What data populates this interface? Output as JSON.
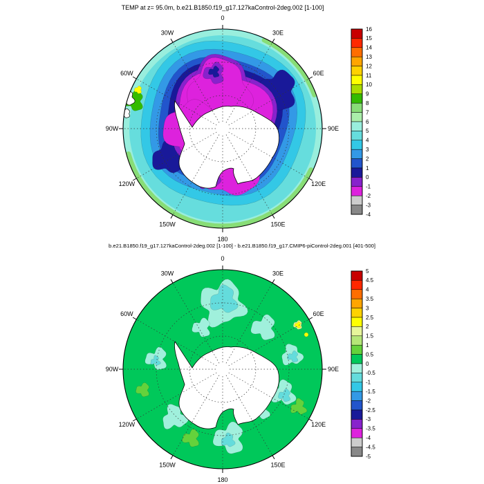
{
  "figure": {
    "background_color": "#ffffff",
    "top_chart": {
      "title": "TEMP at z= 95.0m, b.e21.B1850.f19_g17.127kaControl-2deg.002 [1-100]",
      "longitude_labels": [
        "0",
        "30E",
        "60E",
        "90E",
        "120E",
        "150E",
        "180",
        "150W",
        "120W",
        "90W",
        "60W",
        "30W"
      ],
      "colorbar": {
        "tick_labels": [
          "16",
          "15",
          "14",
          "13",
          "12",
          "11",
          "10",
          "9",
          "8",
          "7",
          "6",
          "5",
          "4",
          "3",
          "2",
          "1",
          "0",
          "-1",
          "-2",
          "-3",
          "-4"
        ],
        "colors": [
          "#c80000",
          "#ff2800",
          "#ff6e00",
          "#ffa500",
          "#ffd200",
          "#ffff00",
          "#aadd00",
          "#33bb00",
          "#88dd77",
          "#aaeeaa",
          "#99eedd",
          "#66dddd",
          "#33c8e6",
          "#3399e6",
          "#2255cc",
          "#191999",
          "#8822cc",
          "#dd22dd",
          "#cccccc",
          "#888888"
        ]
      }
    },
    "bottom_chart": {
      "title": "b.e21.B1850.f19_g17.127kaControl-2deg.002 [1-100] - b.e21.B1850.f19_g17.CMIP6-piControl-2deg.001 [401-500]",
      "longitude_labels": [
        "0",
        "30E",
        "60E",
        "90E",
        "120E",
        "150E",
        "180",
        "150W",
        "120W",
        "90W",
        "60W",
        "30W"
      ],
      "colorbar": {
        "tick_labels": [
          "5",
          "4.5",
          "4",
          "3.5",
          "3",
          "2.5",
          "2",
          "1.5",
          "1",
          "0.5",
          "0",
          "-0.5",
          "-1",
          "-1.5",
          "-2",
          "-2.5",
          "-3",
          "-3.5",
          "-4",
          "-4.5",
          "-5"
        ],
        "colors": [
          "#c80000",
          "#ff2800",
          "#ff6e00",
          "#ffa500",
          "#ffd200",
          "#ffff00",
          "#e6f59b",
          "#b4e678",
          "#64d23c",
          "#00c85a",
          "#a0f0dc",
          "#64dcdc",
          "#33c8e6",
          "#3399e6",
          "#2255cc",
          "#191999",
          "#8822cc",
          "#dd22dd",
          "#cccccc",
          "#888888"
        ]
      }
    }
  },
  "chart_data": [
    {
      "type": "heatmap",
      "subtype": "filled-contour-south-polar-map",
      "projection": "south polar stereographic, 0 longitude at top, Antarctica masked white at center",
      "title": "TEMP at z= 95.0m, b.e21.B1850.f19_g17.127kaControl-2deg.002 [1-100]",
      "variable": "TEMP",
      "level": "z= 95.0m",
      "case": "b.e21.B1850.f19_g17.127kaControl-2deg.002",
      "averaging_years": "[1-100]",
      "longitude_labels": [
        "0",
        "30E",
        "60E",
        "90E",
        "120E",
        "150E",
        "180",
        "150W",
        "120W",
        "90W",
        "60W",
        "30W"
      ],
      "contour_levels": [
        -4,
        -3,
        -2,
        -1,
        0,
        1,
        2,
        3,
        4,
        5,
        6,
        7,
        8,
        9,
        10,
        11,
        12,
        13,
        14,
        15,
        16
      ],
      "colorbar_colors": [
        "#c80000",
        "#ff2800",
        "#ff6e00",
        "#ffa500",
        "#ffd200",
        "#ffff00",
        "#aadd00",
        "#33bb00",
        "#88dd77",
        "#aaeeaa",
        "#99eedd",
        "#66dddd",
        "#33c8e6",
        "#3399e6",
        "#2255cc",
        "#191999",
        "#8822cc",
        "#dd22dd",
        "#cccccc",
        "#888888"
      ],
      "legend_position": "right",
      "field_pattern": {
        "antarctic_coastal_ring_degC": [
          -2,
          -1
        ],
        "subpolar_rings_degC": [
          0,
          3
        ],
        "outer_edge_degC": [
          4,
          7
        ],
        "warm_patch": "small green/yellow patch at South American rim between 60W and 90W",
        "description": "Roughly concentric rings warming outward: magenta (-1 to -2 C) water surrounding white Antarctica with small purple/navy (0 to -1 C) patches near the coast and north of 0 longitude, then purple, navy, blue and cyan bands (0-4 C), ending in pale green/cyan (4-7 C) at the map edge."
      }
    },
    {
      "type": "heatmap",
      "subtype": "filled-contour-south-polar-map-difference",
      "projection": "south polar stereographic, 0 longitude at top, Antarctica masked white at center",
      "title": "b.e21.B1850.f19_g17.127kaControl-2deg.002 [1-100] - b.e21.B1850.f19_g17.CMIP6-piControl-2deg.001 [401-500]",
      "expression": "case b.e21.B1850.f19_g17.127kaControl-2deg.002 [1-100] minus case b.e21.B1850.f19_g17.CMIP6-piControl-2deg.001 [401-500]",
      "longitude_labels": [
        "0",
        "30E",
        "60E",
        "90E",
        "120E",
        "150E",
        "180",
        "150W",
        "120W",
        "90W",
        "60W",
        "30W"
      ],
      "contour_levels": [
        -5,
        -4.5,
        -4,
        -3.5,
        -3,
        -2.5,
        -2,
        -1.5,
        -1,
        -0.5,
        0,
        0.5,
        1,
        1.5,
        2,
        2.5,
        3,
        3.5,
        4,
        4.5,
        5
      ],
      "colorbar_colors": [
        "#c80000",
        "#ff2800",
        "#ff6e00",
        "#ffa500",
        "#ffd200",
        "#ffff00",
        "#e6f59b",
        "#b4e678",
        "#64d23c",
        "#00c85a",
        "#a0f0dc",
        "#64dcdc",
        "#33c8e6",
        "#3399e6",
        "#2255cc",
        "#191999",
        "#8822cc",
        "#dd22dd",
        "#cccccc",
        "#888888"
      ],
      "legend_position": "right",
      "field_pattern": {
        "background_anomaly_degC": [
          0,
          0.5
        ],
        "cool_patches_anomaly_degC": [
          -1,
          -0.5
        ],
        "warm_spots_anomaly_degC": [
          1.5,
          2.5
        ],
        "description": "Nearly uniform +0 to +0.5 C anomaly (green) with scattered -0.5 to -1 C cyan patches near 0 longitude, along the coast and at mid-ring longitudes, and tiny +1.5 to +2.5 C yellow spots near 60E."
      }
    }
  ]
}
